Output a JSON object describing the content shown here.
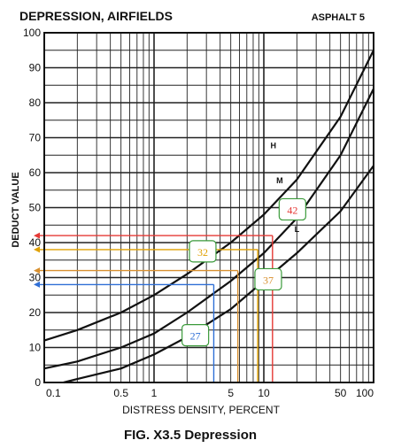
{
  "chart_data": {
    "type": "line",
    "title": "DEPRESSION, AIRFIELDS",
    "subtitle": "ASPHALT 5",
    "caption": "FIG. X3.5 Depression",
    "xlabel": "DISTRESS DENSITY, PERCENT",
    "ylabel": "DEDUCT VALUE",
    "xscale": "log",
    "xlim": [
      0.1,
      100
    ],
    "ylim": [
      0,
      100
    ],
    "grid": true,
    "x_tick_labels": [
      {
        "value": 0.1,
        "label": "0.1"
      },
      {
        "value": 0.5,
        "label": "0.5"
      },
      {
        "value": 1,
        "label": "1"
      },
      {
        "value": 5,
        "label": "5"
      },
      {
        "value": 10,
        "label": "10"
      },
      {
        "value": 50,
        "label": "50"
      },
      {
        "value": 100,
        "label": "100"
      }
    ],
    "y_tick_labels": [
      {
        "value": 0,
        "label": "0"
      },
      {
        "value": 10,
        "label": "10"
      },
      {
        "value": 20,
        "label": "20"
      },
      {
        "value": 30,
        "label": "30"
      },
      {
        "value": 40,
        "label": "40"
      },
      {
        "value": 50,
        "label": "50"
      },
      {
        "value": 60,
        "label": "60"
      },
      {
        "value": 70,
        "label": "70"
      },
      {
        "value": 80,
        "label": "80"
      },
      {
        "value": 90,
        "label": "90"
      },
      {
        "value": 100,
        "label": "100"
      }
    ],
    "series": [
      {
        "name": "H",
        "label_at": {
          "x": 11.5,
          "y": 67
        },
        "x": [
          0.1,
          0.2,
          0.5,
          1,
          2,
          5,
          10,
          20,
          50,
          100
        ],
        "y": [
          12,
          15,
          20,
          25,
          31,
          40,
          48,
          58,
          76,
          95
        ]
      },
      {
        "name": "M",
        "label_at": {
          "x": 13,
          "y": 57
        },
        "x": [
          0.1,
          0.2,
          0.5,
          1,
          2,
          5,
          10,
          20,
          50,
          100
        ],
        "y": [
          4,
          6,
          10,
          14,
          20,
          29,
          37,
          47,
          65,
          84
        ]
      },
      {
        "name": "L",
        "label_at": {
          "x": 19,
          "y": 43
        },
        "x": [
          0.15,
          0.2,
          0.5,
          1,
          2,
          5,
          10,
          20,
          50,
          100
        ],
        "y": [
          0,
          1,
          4,
          8,
          13,
          21,
          29,
          37,
          49,
          62
        ]
      }
    ],
    "annotations": [
      {
        "label": "42",
        "color": "#e53935",
        "x": 12,
        "y": 42,
        "box_at": {
          "x": 13.8,
          "y": 49
        }
      },
      {
        "label": "32",
        "color": "#e0a000",
        "x": 8.8,
        "y": 38,
        "box_at": {
          "x": 2.1,
          "y": 37
        }
      },
      {
        "label": "37",
        "color": "#d89030",
        "x": 5.8,
        "y": 32,
        "box_at": {
          "x": 8.3,
          "y": 29
        }
      },
      {
        "label": "27",
        "color": "#2f6fd6",
        "x": 3.5,
        "y": 28,
        "box_at": {
          "x": 1.8,
          "y": 13
        }
      }
    ]
  }
}
